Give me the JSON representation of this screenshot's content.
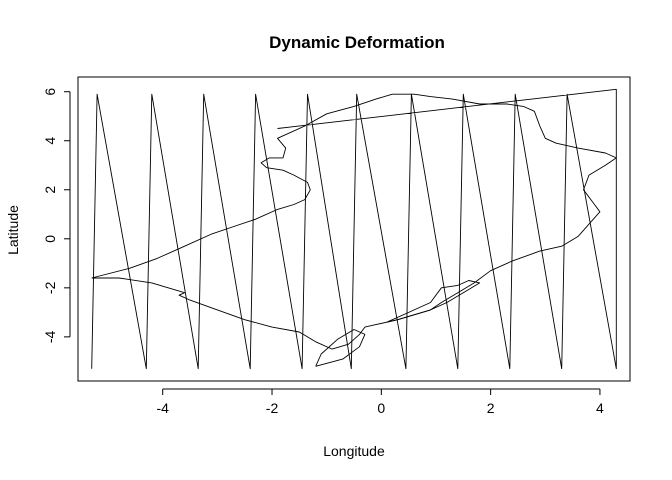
{
  "chart_data": {
    "type": "line",
    "title": "Dynamic Deformation",
    "xlabel": "Longitude",
    "ylabel": "Latitude",
    "xlim": [
      -5.55,
      4.55
    ],
    "ylim": [
      -5.8,
      6.6
    ],
    "xticks": [
      -4,
      -2,
      0,
      2,
      4
    ],
    "xtick_labels": [
      "-4",
      "-2",
      "0",
      "2",
      "4"
    ],
    "yticks": [
      -4,
      -2,
      0,
      2,
      4,
      6
    ],
    "ytick_labels": [
      "-4",
      "-2",
      "0",
      "2",
      "4",
      "6"
    ],
    "grid": false,
    "legend": "none",
    "line_color": "#000000",
    "series": [
      {
        "x": [
          -5.3,
          -5.2,
          -4.3,
          -4.2,
          -3.35,
          -3.25,
          -2.4,
          -2.3,
          -1.45,
          -1.35,
          -0.55,
          -0.45,
          0.45,
          0.55,
          1.4,
          1.5,
          2.35,
          2.45,
          3.3,
          3.4,
          4.3,
          4.3,
          -1.9
        ],
        "y": [
          -5.3,
          5.9,
          -5.3,
          5.9,
          -5.3,
          5.9,
          -5.3,
          5.9,
          -5.3,
          5.9,
          -5.3,
          5.9,
          -5.3,
          5.9,
          -5.3,
          5.9,
          -5.3,
          5.9,
          -5.3,
          5.9,
          -5.3,
          6.1,
          4.5
        ]
      },
      {
        "x": [
          -5.3,
          -4.6,
          -4.1,
          -3.6,
          -3.1,
          -2.7,
          -2.3,
          -1.9,
          -1.6,
          -1.4,
          -1.3,
          -1.35,
          -1.6,
          -1.8,
          -2.1,
          -2.2,
          -2.05,
          -1.8,
          -1.75,
          -1.9,
          -1.4,
          -1.0,
          -0.5,
          -0.1,
          0.2,
          0.4,
          0.6,
          0.9,
          1.3,
          1.8,
          2.3,
          2.6,
          2.8,
          2.9,
          3.0,
          3.2,
          3.6,
          4.1,
          4.3,
          4.1,
          3.8,
          3.7,
          3.9,
          4.0,
          3.8,
          3.6,
          3.3,
          2.9,
          2.4,
          2.0,
          1.7,
          1.4,
          1.1,
          0.9,
          0.6,
          0.3,
          0.1,
          -0.1,
          -0.3,
          -0.4,
          -0.6,
          -0.9,
          -1.2,
          -1.5,
          -2.0,
          -2.5,
          -3.0,
          -3.5,
          -3.7,
          -3.6,
          -4.2,
          -4.8,
          -5.3
        ],
        "y": [
          -1.6,
          -1.2,
          -0.8,
          -0.3,
          0.2,
          0.5,
          0.8,
          1.2,
          1.4,
          1.6,
          2.0,
          2.3,
          2.6,
          2.8,
          2.9,
          3.1,
          3.3,
          3.3,
          3.7,
          4.1,
          4.6,
          5.1,
          5.4,
          5.7,
          5.9,
          5.9,
          5.9,
          5.8,
          5.7,
          5.5,
          5.5,
          5.4,
          5.2,
          4.6,
          4.1,
          3.9,
          3.7,
          3.5,
          3.3,
          3.0,
          2.6,
          2.0,
          1.4,
          1.1,
          0.6,
          0.1,
          -0.3,
          -0.5,
          -0.9,
          -1.3,
          -1.8,
          -2.2,
          -2.6,
          -2.9,
          -3.1,
          -3.3,
          -3.4,
          -3.5,
          -3.6,
          -3.9,
          -4.3,
          -4.5,
          -4.2,
          -3.8,
          -3.6,
          -3.3,
          -2.9,
          -2.5,
          -2.3,
          -2.2,
          -1.8,
          -1.6,
          -1.6
        ]
      },
      {
        "x": [
          0.1,
          0.5,
          0.9,
          1.1,
          1.4,
          1.6,
          1.8,
          1.5,
          1.2,
          0.9,
          0.6,
          0.3,
          0.1
        ],
        "y": [
          -3.4,
          -3.0,
          -2.6,
          -2.0,
          -1.9,
          -1.7,
          -1.8,
          -2.2,
          -2.6,
          -2.9,
          -3.1,
          -3.3,
          -3.4
        ]
      },
      {
        "x": [
          -1.2,
          -0.7,
          -0.4,
          -0.3,
          -0.5,
          -0.8,
          -1.1,
          -1.2
        ],
        "y": [
          -5.2,
          -4.9,
          -4.4,
          -3.9,
          -3.7,
          -4.1,
          -4.7,
          -5.2
        ]
      }
    ]
  }
}
